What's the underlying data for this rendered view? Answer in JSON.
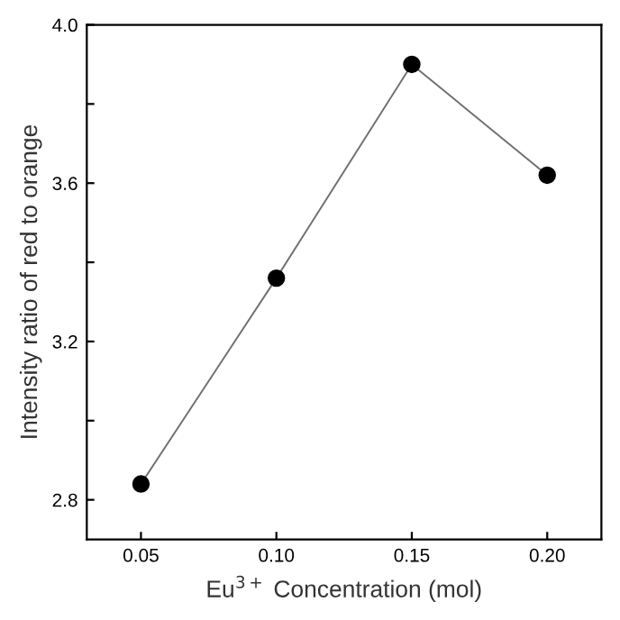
{
  "chart_data": {
    "type": "line",
    "xlabel": "Eu$^{3+}$ Concentration (mol)",
    "ylabel": "Intensity ratio of red to orange",
    "x": [
      0.05,
      0.1,
      0.15,
      0.2
    ],
    "series": [
      {
        "color": "#000000",
        "values": [
          2.84,
          3.36,
          3.9,
          3.62
        ]
      }
    ],
    "marker": "circle",
    "line_style": "solid",
    "xlim": [
      0.03,
      0.22
    ],
    "xticks": [
      {
        "value": 0.05,
        "label": "0.05"
      },
      {
        "value": 0.1,
        "label": "0.10"
      },
      {
        "value": 0.15,
        "label": "0.15"
      },
      {
        "value": 0.2,
        "label": "0.20"
      }
    ],
    "ylim": [
      2.7,
      4.0
    ],
    "yticks": [
      2.8,
      {
        "value": 3.0,
        "label": null
      },
      3.2,
      {
        "value": 3.4,
        "label": null
      },
      3.6,
      {
        "value": 3.8,
        "label": null
      },
      {
        "value": 4.0,
        "label": "4.0"
      }
    ],
    "grid": false,
    "legend": false
  }
}
